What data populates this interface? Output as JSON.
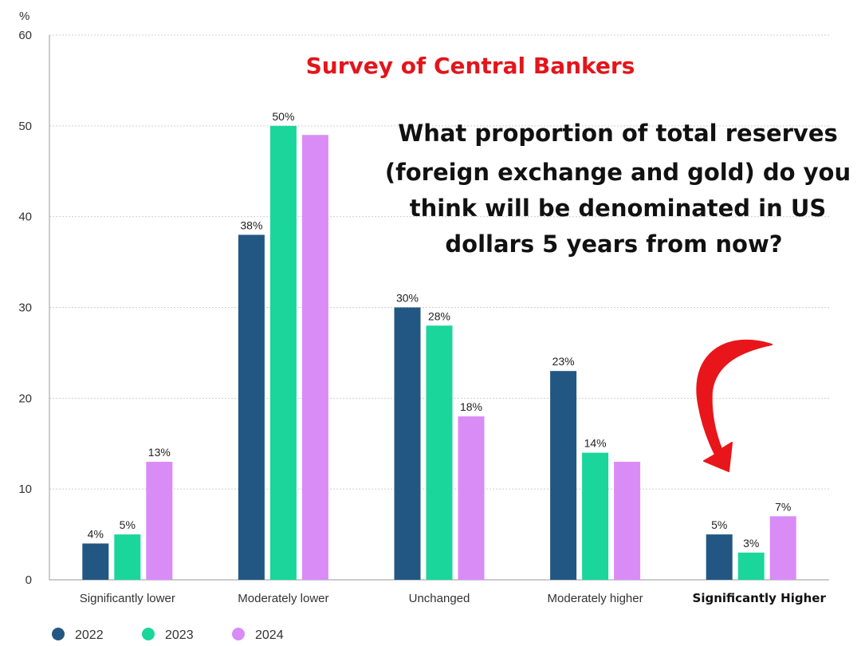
{
  "chart_data": {
    "type": "bar",
    "title": "Survey of Central Bankers",
    "subtitle_lines": [
      "What proportion of total reserves",
      "(foreign exchange and gold) do you",
      "think will be denominated in US",
      "dollars 5 years from now?"
    ],
    "ylabel": "%",
    "ylim": [
      0,
      60
    ],
    "yticks": [
      0,
      10,
      20,
      30,
      40,
      50,
      60
    ],
    "grid": true,
    "legend_position": "bottom-left",
    "categories": [
      "Significantly lower",
      "Moderately lower",
      "Unchanged",
      "Moderately higher",
      "Significantly Higher"
    ],
    "series": [
      {
        "name": "2022",
        "color": "#235783",
        "values": [
          4,
          38,
          30,
          23,
          5
        ],
        "data_labels": [
          "4%",
          "38%",
          "30%",
          "23%",
          "5%"
        ]
      },
      {
        "name": "2023",
        "color": "#1ad69b",
        "values": [
          5,
          50,
          28,
          14,
          3
        ],
        "data_labels": [
          "5%",
          "50%",
          "28%",
          "14%",
          "3%"
        ]
      },
      {
        "name": "2024",
        "color": "#d98cf6",
        "values": [
          13,
          49,
          18,
          13,
          7
        ],
        "data_labels": [
          "13%",
          "",
          "18%",
          "",
          "7%"
        ]
      }
    ],
    "title_color": "#e3151b",
    "annotation": {
      "type": "curved-arrow",
      "color": "#e8161a",
      "points_to": "Significantly Higher"
    }
  }
}
